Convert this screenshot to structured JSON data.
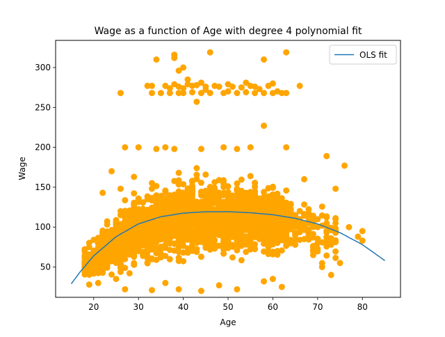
{
  "chart_data": {
    "type": "scatter",
    "title": "Wage as a function of Age with degree 4 polynomial fit",
    "xlabel": "Age",
    "ylabel": "Wage",
    "xlim": [
      11.5,
      88.5
    ],
    "ylim": [
      12,
      334
    ],
    "xticks": [
      20,
      30,
      40,
      50,
      60,
      70,
      80
    ],
    "yticks": [
      50,
      100,
      150,
      200,
      250,
      300
    ],
    "grid": false,
    "legend_position": "top-right",
    "colors": {
      "scatter": "#ffa500",
      "fit": "#1f77b4"
    },
    "legend": [
      {
        "label": "OLS fit",
        "color": "#1f77b4"
      }
    ],
    "fit": {
      "name": "OLS fit",
      "points": [
        [
          15,
          29
        ],
        [
          17,
          44
        ],
        [
          20,
          64
        ],
        [
          25,
          88
        ],
        [
          30,
          104
        ],
        [
          35,
          113
        ],
        [
          40,
          117.5
        ],
        [
          45,
          119.2
        ],
        [
          50,
          119.3
        ],
        [
          55,
          118
        ],
        [
          60,
          115.5
        ],
        [
          65,
          111
        ],
        [
          70,
          104
        ],
        [
          75,
          93
        ],
        [
          80,
          78
        ],
        [
          85,
          58
        ]
      ]
    },
    "outliers": [
      [
        26,
        268
      ],
      [
        32,
        277
      ],
      [
        33,
        268
      ],
      [
        33,
        277
      ],
      [
        34,
        310
      ],
      [
        35,
        268
      ],
      [
        36,
        277
      ],
      [
        37,
        268
      ],
      [
        37,
        274
      ],
      [
        38,
        312
      ],
      [
        38,
        316
      ],
      [
        38,
        279
      ],
      [
        39,
        268
      ],
      [
        39,
        296
      ],
      [
        39,
        276
      ],
      [
        40,
        300
      ],
      [
        40,
        274
      ],
      [
        40,
        268
      ],
      [
        41,
        285
      ],
      [
        41,
        279
      ],
      [
        42,
        269
      ],
      [
        42,
        277
      ],
      [
        43,
        257
      ],
      [
        43,
        278
      ],
      [
        44,
        268
      ],
      [
        44,
        281
      ],
      [
        45,
        272
      ],
      [
        45,
        276
      ],
      [
        46,
        319
      ],
      [
        46,
        268
      ],
      [
        47,
        277
      ],
      [
        48,
        276
      ],
      [
        49,
        268
      ],
      [
        50,
        279
      ],
      [
        50,
        270
      ],
      [
        51,
        276
      ],
      [
        52,
        268
      ],
      [
        53,
        275
      ],
      [
        54,
        281
      ],
      [
        54,
        269
      ],
      [
        55,
        277
      ],
      [
        56,
        268
      ],
      [
        56,
        276
      ],
      [
        57,
        273
      ],
      [
        58,
        310
      ],
      [
        58,
        268
      ],
      [
        59,
        277
      ],
      [
        60,
        268
      ],
      [
        60,
        280
      ],
      [
        61,
        270
      ],
      [
        62,
        268
      ],
      [
        63,
        319
      ],
      [
        63,
        268
      ],
      [
        66,
        277
      ]
    ],
    "extra_points": [
      [
        27,
        200
      ],
      [
        30,
        200
      ],
      [
        34,
        198
      ],
      [
        36,
        200
      ],
      [
        38,
        198
      ],
      [
        44,
        198
      ],
      [
        49,
        200
      ],
      [
        52,
        198
      ],
      [
        55,
        200
      ],
      [
        58,
        227
      ],
      [
        63,
        200
      ],
      [
        67,
        160
      ],
      [
        72,
        189
      ],
      [
        74,
        148
      ],
      [
        76,
        177
      ],
      [
        77,
        100
      ],
      [
        80,
        95
      ],
      [
        80,
        83
      ],
      [
        79,
        88
      ],
      [
        75,
        55
      ],
      [
        73,
        40
      ],
      [
        71,
        50
      ],
      [
        70,
        80
      ],
      [
        69,
        65
      ],
      [
        68,
        88
      ],
      [
        66,
        120
      ],
      [
        65,
        90
      ],
      [
        64,
        110
      ],
      [
        62,
        25
      ],
      [
        60,
        35
      ],
      [
        58,
        32
      ],
      [
        52,
        22
      ],
      [
        48,
        27
      ],
      [
        44,
        20
      ],
      [
        39,
        22
      ],
      [
        36,
        30
      ],
      [
        33,
        21
      ],
      [
        27,
        22
      ],
      [
        25,
        35
      ],
      [
        21,
        30
      ],
      [
        19,
        28
      ],
      [
        20,
        45
      ],
      [
        22,
        143
      ],
      [
        24,
        170
      ],
      [
        18,
        62
      ],
      [
        18,
        72
      ],
      [
        18,
        55
      ],
      [
        19,
        75
      ],
      [
        26,
        148
      ],
      [
        29,
        163
      ]
    ],
    "bulk_count": 2300
  }
}
